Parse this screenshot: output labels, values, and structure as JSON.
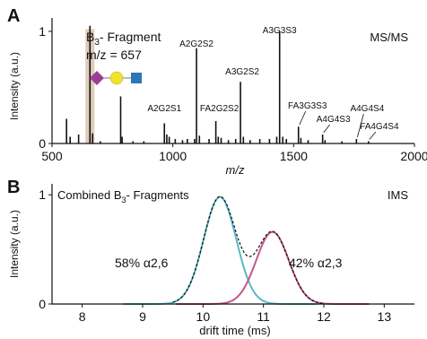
{
  "chart_data": [
    {
      "type": "line",
      "panel_letter": "A",
      "title": "MS/MS",
      "xlabel": "m/z",
      "ylabel": "Intensity (a.u.)",
      "xlim": [
        500,
        2000
      ],
      "ylim": [
        0,
        1.12
      ],
      "x_ticks": [
        500,
        1000,
        1500,
        2000
      ],
      "y_ticks": [
        0,
        1
      ],
      "highlight": {
        "mz": 657,
        "color": "#d9c3ad"
      },
      "fragment_label": {
        "title_main": "B",
        "title_sub": "3",
        "title_rest": "- Fragment",
        "mz_text": "m/z = 657"
      },
      "glycan_icon": [
        "sialic-acid-diamond",
        "galactose-circle",
        "glcnac-square"
      ],
      "glycan_colors": {
        "diamond": "#9b3f96",
        "circle": "#f2e12d",
        "square": "#2e76b8"
      },
      "peaks": [
        [
          560,
          0.22
        ],
        [
          575,
          0.06
        ],
        [
          610,
          0.08
        ],
        [
          657,
          1.05
        ],
        [
          668,
          0.09
        ],
        [
          700,
          0.02
        ],
        [
          784,
          0.42
        ],
        [
          790,
          0.06
        ],
        [
          835,
          0.02
        ],
        [
          880,
          0.02
        ],
        [
          965,
          0.18
        ],
        [
          975,
          0.08
        ],
        [
          985,
          0.06
        ],
        [
          1010,
          0.04
        ],
        [
          1040,
          0.03
        ],
        [
          1060,
          0.04
        ],
        [
          1090,
          0.04
        ],
        [
          1098,
          0.85
        ],
        [
          1110,
          0.07
        ],
        [
          1150,
          0.04
        ],
        [
          1178,
          0.2
        ],
        [
          1188,
          0.06
        ],
        [
          1200,
          0.05
        ],
        [
          1230,
          0.03
        ],
        [
          1260,
          0.04
        ],
        [
          1280,
          0.55
        ],
        [
          1292,
          0.06
        ],
        [
          1320,
          0.03
        ],
        [
          1360,
          0.04
        ],
        [
          1400,
          0.04
        ],
        [
          1430,
          0.06
        ],
        [
          1442,
          1.0
        ],
        [
          1455,
          0.06
        ],
        [
          1470,
          0.04
        ],
        [
          1520,
          0.15
        ],
        [
          1530,
          0.05
        ],
        [
          1560,
          0.03
        ],
        [
          1620,
          0.08
        ],
        [
          1630,
          0.03
        ],
        [
          1700,
          0.02
        ],
        [
          1760,
          0.04
        ],
        [
          1810,
          0.02
        ]
      ],
      "annotations": [
        {
          "label": "A2G2S1",
          "mz": 965,
          "y": 0.18
        },
        {
          "label": "A2G2S2",
          "mz": 1098,
          "y": 0.85
        },
        {
          "label": "FA2G2S2",
          "mz": 1178,
          "y": 0.2
        },
        {
          "label": "A3G2S2",
          "mz": 1280,
          "y": 0.55
        },
        {
          "label": "A3G3S3",
          "mz": 1442,
          "y": 1.0
        },
        {
          "label": "FA3G3S3",
          "mz": 1520,
          "y": 0.15
        },
        {
          "label": "A4G4S3",
          "mz": 1620,
          "y": 0.08
        },
        {
          "label": "A4G4S4",
          "mz": 1760,
          "y": 0.04
        },
        {
          "label": "FA4G4S4",
          "mz": 1810,
          "y": 0.02
        }
      ]
    },
    {
      "type": "line",
      "panel_letter": "B",
      "title": "IMS",
      "xlabel": "drift time (ms)",
      "ylabel": "Intensity (a.u.)",
      "xlim": [
        7.5,
        13.5
      ],
      "ylim": [
        0,
        1.1
      ],
      "x_ticks": [
        8,
        9,
        10,
        11,
        12,
        13
      ],
      "y_ticks": [
        0,
        1
      ],
      "inset_title": {
        "main": "Combined B",
        "sub": "3",
        "rest": "- Fragments"
      },
      "series": [
        {
          "name": "58% α2,6",
          "color": "#5ab8c8",
          "center": 10.28,
          "amplitude": 0.98,
          "sigma": 0.27
        },
        {
          "name": "42% α2,3",
          "color": "#c8558a",
          "center": 11.15,
          "amplitude": 0.66,
          "sigma": 0.27
        }
      ],
      "sum_color": "#111111"
    }
  ]
}
